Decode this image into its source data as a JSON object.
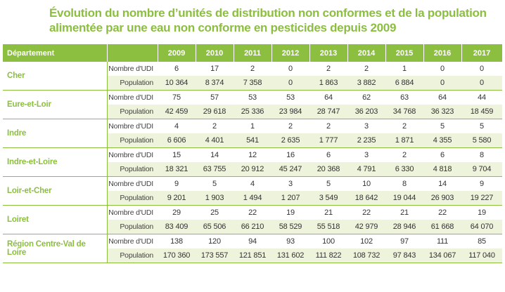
{
  "title": "Évolution du nombre d’unités de distribution non conformes et de la population alimentée par une eau non conforme en pesticides depuis 2009",
  "header": {
    "department": "Département",
    "years": [
      "2009",
      "2010",
      "2011",
      "2012",
      "2013",
      "2014",
      "2015",
      "2016",
      "2017"
    ]
  },
  "labels": {
    "udi": "Nombre d'UDI",
    "population": "Population"
  },
  "rows": [
    {
      "name": "Cher",
      "udi": [
        "6",
        "17",
        "2",
        "0",
        "2",
        "2",
        "1",
        "0",
        "0"
      ],
      "population": [
        "10 364",
        "8 374",
        "7 358",
        "0",
        "1 863",
        "3 882",
        "6 884",
        "0",
        "0"
      ]
    },
    {
      "name": "Eure-et-Loir",
      "udi": [
        "75",
        "57",
        "53",
        "53",
        "64",
        "62",
        "63",
        "64",
        "44"
      ],
      "population": [
        "42 459",
        "29 618",
        "25 336",
        "23 984",
        "28 747",
        "36 203",
        "34 768",
        "36 323",
        "18 459"
      ]
    },
    {
      "name": "Indre",
      "udi": [
        "4",
        "2",
        "1",
        "2",
        "2",
        "3",
        "2",
        "5",
        "5"
      ],
      "population": [
        "6 606",
        "4 401",
        "541",
        "2 635",
        "1 777",
        "2 235",
        "1 871",
        "4 355",
        "5 580"
      ]
    },
    {
      "name": "Indre-et-Loire",
      "udi": [
        "15",
        "14",
        "12",
        "16",
        "6",
        "3",
        "2",
        "6",
        "8"
      ],
      "population": [
        "18 321",
        "63 755",
        "20 912",
        "45 247",
        "20 368",
        "4 791",
        "6 330",
        "4 818",
        "9 704"
      ]
    },
    {
      "name": "Loir-et-Cher",
      "udi": [
        "9",
        "5",
        "4",
        "3",
        "5",
        "10",
        "8",
        "14",
        "9"
      ],
      "population": [
        "9 201",
        "1 903",
        "1 494",
        "1 207",
        "3 549",
        "18 642",
        "19 044",
        "26 903",
        "19 227"
      ]
    },
    {
      "name": "Loiret",
      "udi": [
        "29",
        "25",
        "22",
        "19",
        "21",
        "22",
        "21",
        "22",
        "19"
      ],
      "population": [
        "83 409",
        "65 506",
        "66 210",
        "58 529",
        "55 518",
        "42 979",
        "28 946",
        "61 668",
        "64 070"
      ]
    },
    {
      "name": "Région Centre-Val de Loire",
      "udi": [
        "138",
        "120",
        "94",
        "93",
        "100",
        "102",
        "97",
        "111",
        "85"
      ],
      "population": [
        "170 360",
        "173 557",
        "121 851",
        "131 602",
        "111 822",
        "108 732",
        "97 843",
        "134 067",
        "117 040"
      ]
    }
  ]
}
